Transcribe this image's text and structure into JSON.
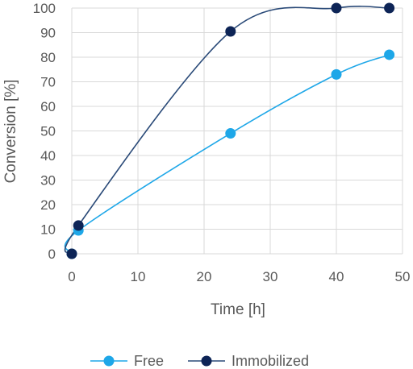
{
  "chart_data": {
    "type": "scatter",
    "title": "",
    "xlabel": "Time [h]",
    "ylabel": "Conversion [%]",
    "xlim": [
      0,
      50
    ],
    "ylim": [
      0,
      100
    ],
    "xticks": [
      "0",
      "10",
      "20",
      "30",
      "40",
      "50"
    ],
    "yticks": [
      "0",
      "10",
      "20",
      "30",
      "40",
      "50",
      "60",
      "70",
      "80",
      "90",
      "100"
    ],
    "grid": "both",
    "smoothed_lines": true,
    "legend_position": "bottom",
    "series": [
      {
        "name": "Free",
        "color": "#1ea7e8",
        "x": [
          0,
          1,
          24,
          40,
          48
        ],
        "y": [
          0,
          9.5,
          49,
          73,
          81
        ]
      },
      {
        "name": "Immobilized",
        "color": "#0d2456",
        "line_color": "#2a4a78",
        "x": [
          0,
          1,
          24,
          40,
          48
        ],
        "y": [
          0,
          11.5,
          90.5,
          100,
          100
        ]
      }
    ]
  }
}
